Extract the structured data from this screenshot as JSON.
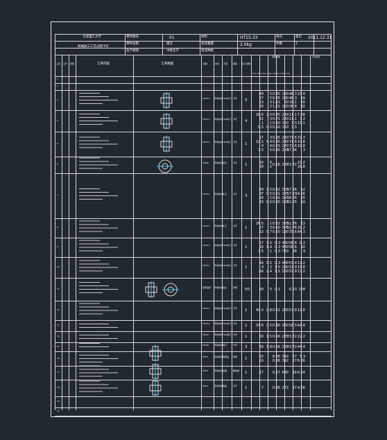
{
  "header": {
    "school": "大连理工大学",
    "card_title": "机械加工工艺过程卡片",
    "part_number_label": "零件图号",
    "part_number": "II1",
    "material_label": "材料",
    "material": "HT15-33",
    "sheet_label": "共页",
    "sheet_value": "第页",
    "date": "2011.12.31",
    "part_name_label": "零件名称",
    "part_name": "拨叉",
    "weight_label": "毛坯重量",
    "weight": "2.0kg",
    "count_label": "件数",
    "count": "1",
    "product_label": "生产纲领",
    "product": "中批生产",
    "blank_label": "毛坯种类",
    "blank": "铸件"
  },
  "columns": {
    "process_no": "工序",
    "step": "工步",
    "install": "安装",
    "content": "工序内容",
    "sketch": "工序简图",
    "machine": "机床",
    "fixture": "夹具",
    "tool": "刀具",
    "measure": "量具",
    "passes": "走刀次数",
    "params": "切削用量",
    "time": "工时定额",
    "units": "mm mm mm r/min m/min mm/r min"
  },
  "rows": [
    {
      "id": "1",
      "c": [
        "",
        "",
        "",
        "",
        "",
        "",
        ""
      ]
    },
    {
      "id": "2",
      "c": [
        "",
        "",
        "",
        "",
        "",
        "",
        ""
      ]
    },
    {
      "id": "3",
      "m": "C620-1",
      "f": "专用夹具",
      "tl": "YG6车刀",
      "ms": "卡尺",
      "p": "5",
      "c": [
        "40\n37\n13\n20",
        "5\n5\n3\n2",
        "0.85\n0.85\n1.21\n1.21",
        "180\n180\n20\n150",
        "46.3\n46.3\n18.1\n36.6",
        "23.4\n19\n10\n82"
      ]
    },
    {
      "id": "4",
      "m": "C620-1",
      "f": "专用夹具",
      "tl": "YG6车刀",
      "ms": "卡尺",
      "p": "4",
      "c": [
        "28.8\n22\n1\n0.5",
        "2.5\n3\n1\n0.5",
        "0.85\n0.71\n0.50\n0.50",
        "230\n230\n120\n120",
        "11.1\n11.1\n7.5\n7.5",
        "7.28\n7.2\n15.1\n"
      ]
    },
    {
      "id": "5",
      "m": "C620-1",
      "f": "专用夹具",
      "tl": "YG6车刀",
      "ms": "卡尺",
      "p": "1",
      "c": [
        "17\n12.5\n4\n3.5",
        "3\n5.4\n4\n5",
        "0.35\n0.35\n0.55\n0.35",
        "230\n230\n230\n210",
        "71.6\n71.6\n72.6\n57.04",
        "10.3\n10.8\n10.8\n3"
      ]
    },
    {
      "id": "6",
      "m": "X62W",
      "f": "专用夹具",
      "tl": "铣刀",
      "ms": "卡尺",
      "p": "1",
      "c": [
        "50\n18",
        "6\n2",
        "0.16",
        "235",
        "73.72",
        "22.2\n26.8"
      ]
    },
    {
      "id": "7",
      "m": "C620-1",
      "f": "专用夹具",
      "tl": "车刀",
      "ms": "卡尺",
      "p": "3",
      "c": [
        "49\n37\n16\n33",
        "1.5\n0.5\n1\n0.5",
        "0.82\n0.61\n0.91\n0.60",
        "305\n185\n150\n250",
        "57.26\n17.53\n16.76\n53.65",
        "12\n14.16\n15\n10"
      ]
    },
    {
      "id": "8",
      "m": "C620-1",
      "f": "专用夹具",
      "tl": "车刀",
      "ms": "卡尺",
      "p": "1",
      "c": [
        "26.5\n27\n12",
        "1\n3\n0.7",
        "0.82\n0.50\n0.50",
        "305\n305\n190",
        "51.76\n51.76\n35.6",
        "13\n32.2\n64.3"
      ]
    },
    {
      "id": "9",
      "m": "C620-1",
      "f": "专用夹具",
      "tl": "YG6车刀",
      "ms": "卡尺",
      "p": "1",
      "c": [
        "17\n16\n3.5",
        "1.5\n1.4\n1",
        "0.3\n0.3\n0.3",
        "480\n480\n760",
        "58.6\n58.6\n56",
        "9.2\n10\n9"
      ]
    },
    {
      "id": "10",
      "m": "C620-1",
      "f": "专用夹具",
      "tl": "YG6车刀",
      "ms": "卡尺",
      "p": "1",
      "c": [
        "16\n4\n16",
        "0.5\n2\n2.4",
        "0.3\n1.5\n1.5",
        "480\n230\n260",
        "53.4\n53.9\n57.9",
        "13.2\n15.8\n13.2"
      ]
    },
    {
      "id": "11",
      "m": "摇臂钻床",
      "f": "专用夹具",
      "tl": "钻头",
      "ms": "塞规",
      "p": "50",
      "c": [
        "30",
        "5",
        "0.1",
        "",
        "6.13",
        "108"
      ]
    },
    {
      "id": "12",
      "m": "C620-1",
      "f": "专用夹具",
      "tl": "YG6车刀",
      "ms": "卡尺",
      "p": "1",
      "c": [
        "40.3",
        "0.8",
        "0.61",
        "280",
        "57.8",
        "12.8"
      ]
    },
    {
      "id": "13",
      "m": "C620-1",
      "f": "专用夹具",
      "tl": "YG6车刀",
      "ms": "卡尺",
      "p": "1",
      "c": [
        "34.6",
        "0.5",
        "0.30",
        "380",
        "56.5",
        "64.8"
      ]
    },
    {
      "id": "14",
      "m": "X62W",
      "f": "专用夹具",
      "tl": "YG6铣刀",
      "ms": "卡尺",
      "p": "1",
      "c": [
        "50",
        "1.5",
        "0.16",
        "235",
        "73.72",
        "22.2"
      ]
    },
    {
      "id": "15",
      "m": "X62W",
      "f": "专用夹具",
      "tl": "铣刀",
      "ms": "卡尺",
      "p": "3",
      "c": [
        "30",
        "1.8",
        "0.16",
        "235",
        "73.72",
        "44.4"
      ]
    },
    {
      "id": "16",
      "m": "Z525",
      "f": "专用夹具",
      "tl": "麻花钻",
      "ms": "塞规",
      "p": "1",
      "c": [
        "15\n10",
        "",
        "0.36\n0.36",
        "392\n392",
        "17\n17",
        "5.3\n6.36"
      ]
    },
    {
      "id": "17",
      "m": "Z525",
      "f": "专用夹具",
      "tl": "丝锥",
      "ms": "螺纹规",
      "p": "1",
      "c": [
        "17",
        "",
        "0.17",
        "680",
        "16",
        "6.24"
      ]
    },
    {
      "id": "18",
      "m": "Z525",
      "f": "专用夹具",
      "tl": "锪钻",
      "ms": "卡尺",
      "p": "1",
      "c": [
        "7",
        "",
        "0.36",
        "272",
        "17",
        "4.26"
      ]
    },
    {
      "id": "19",
      "c": [
        "",
        "",
        "",
        "",
        "",
        ""
      ]
    },
    {
      "id": "20",
      "c": [
        "",
        "",
        "",
        "",
        "",
        ""
      ]
    }
  ]
}
